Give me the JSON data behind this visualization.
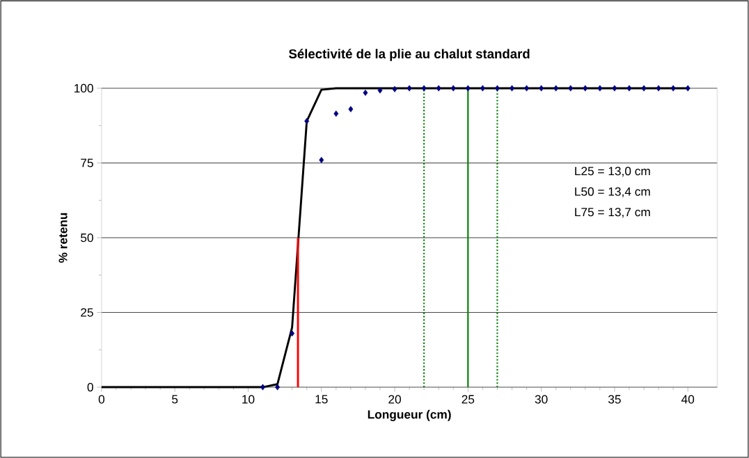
{
  "chart_data": {
    "type": "scatter",
    "title": "Sélectivité de la plie au chalut standard",
    "xlabel": "Longueur (cm)",
    "ylabel": "% retenu",
    "xlim": [
      0,
      42
    ],
    "ylim": [
      0,
      100
    ],
    "xticks": [
      0,
      5,
      10,
      15,
      20,
      25,
      30,
      35,
      40
    ],
    "yticks": [
      0,
      25,
      50,
      75,
      100
    ],
    "grid": "y",
    "series": [
      {
        "type": "line",
        "color": "#000000",
        "marker": "none",
        "line_style": "solid",
        "x": [
          0,
          11,
          12,
          13,
          14,
          15,
          16,
          40
        ],
        "values": [
          0,
          0,
          1,
          20,
          89,
          99.5,
          100,
          100
        ]
      },
      {
        "type": "line",
        "color": "#ff0000",
        "marker": "none",
        "line_style": "solid",
        "x": [
          13.4,
          13.4
        ],
        "values": [
          0,
          50
        ]
      },
      {
        "color": "#000080",
        "marker": "diamond",
        "x": [
          11,
          12,
          13,
          14,
          15,
          16,
          17,
          18,
          19,
          20,
          21,
          22,
          23,
          24,
          25,
          26,
          27,
          28,
          29,
          30,
          31,
          32,
          33,
          34,
          35,
          36,
          37,
          38,
          39,
          40
        ],
        "values": [
          0,
          0,
          18,
          89,
          76,
          91.5,
          93,
          98.5,
          99.3,
          99.7,
          100,
          100,
          100,
          100,
          100,
          100,
          100,
          100,
          100,
          100,
          100,
          100,
          100,
          100,
          100,
          100,
          100,
          100,
          100,
          100
        ]
      }
    ],
    "ref_lines": [
      {
        "axis": "x",
        "value": 22,
        "color": "#008000",
        "line_style": "dotted"
      },
      {
        "axis": "x",
        "value": 25,
        "color": "#008000",
        "line_style": "solid"
      },
      {
        "axis": "x",
        "value": 27,
        "color": "#008000",
        "line_style": "dotted"
      }
    ],
    "annotations": [
      "L25 = 13,0 cm",
      "L50 = 13,4 cm",
      "L75 = 13,7 cm"
    ]
  }
}
